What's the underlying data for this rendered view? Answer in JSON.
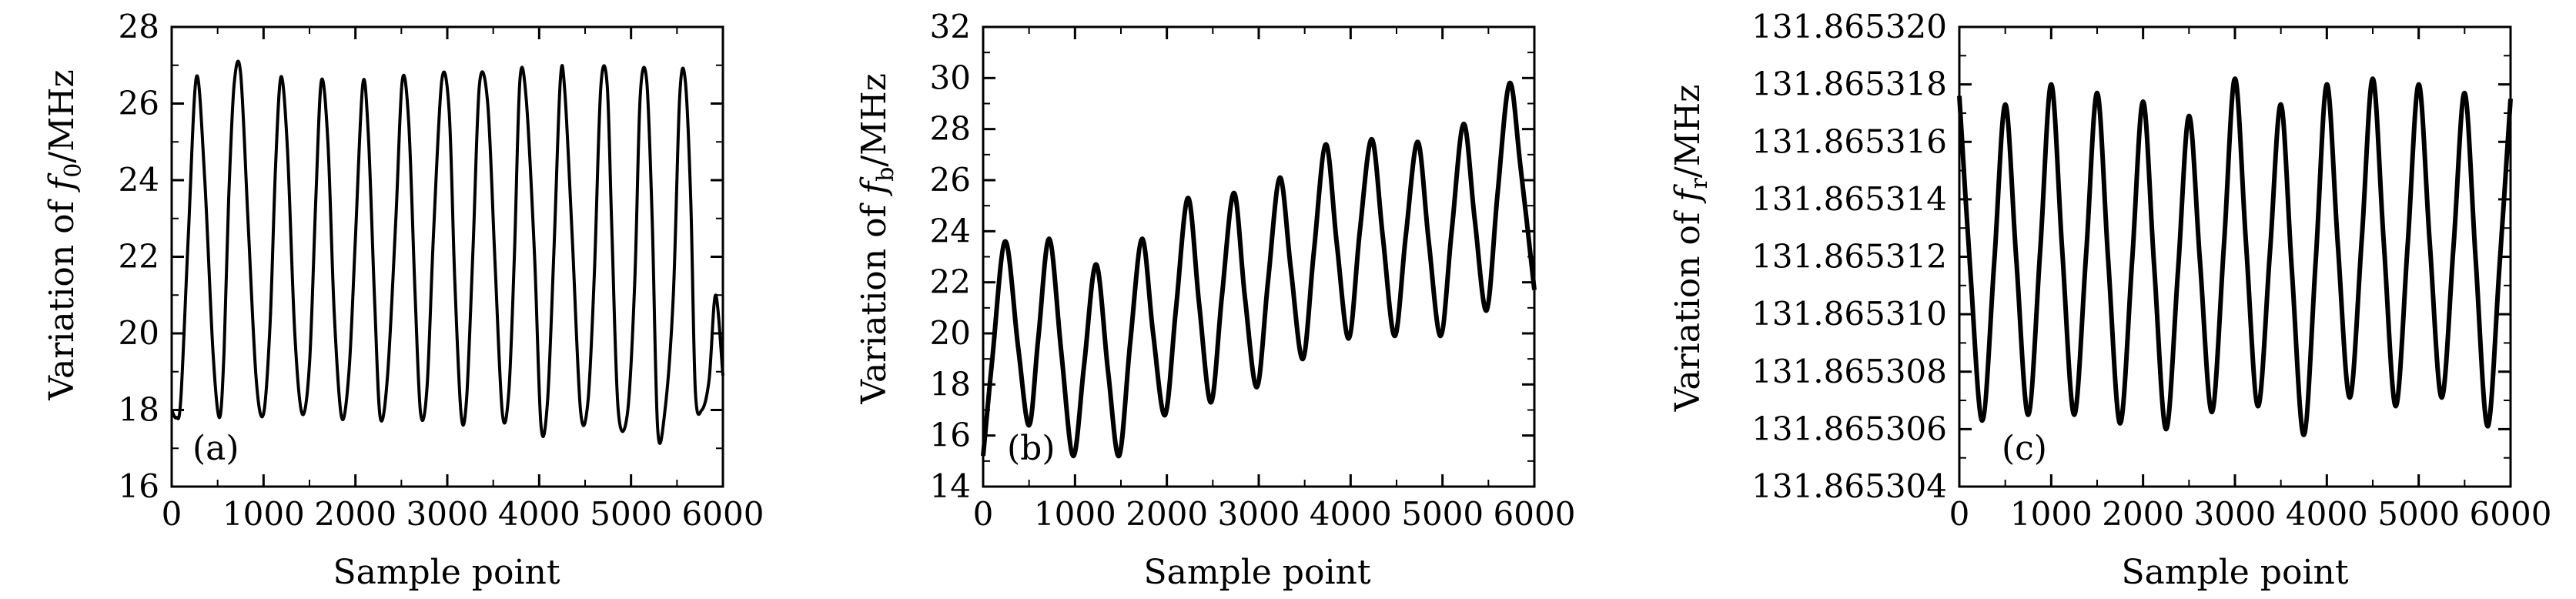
{
  "figure": {
    "panels": [
      "(a)",
      "(b)",
      "(c)"
    ]
  },
  "chart_data": [
    {
      "type": "line",
      "panel_label": "(a)",
      "xlabel": "Sample point",
      "ylabel": "Variation of f₀/MHz",
      "ylabel_parts": {
        "prefix": "Variation of ",
        "symbol": "f",
        "subscript": "0",
        "suffix": "/MHz"
      },
      "xlim": [
        0,
        6000
      ],
      "ylim": [
        16,
        28
      ],
      "xticks": [
        0,
        1000,
        2000,
        3000,
        4000,
        5000,
        6000
      ],
      "yticks": [
        16,
        18,
        20,
        22,
        24,
        26,
        28
      ],
      "ytick_labels": [
        "16",
        "18",
        "20",
        "22",
        "24",
        "26",
        "28"
      ],
      "line_color": "#000000",
      "series": [
        {
          "x": [
            0,
            50,
            100,
            180,
            270,
            360,
            450,
            520,
            570,
            620,
            680,
            750,
            830,
            920,
            1000,
            1070,
            1130,
            1190,
            1260,
            1340,
            1420,
            1500,
            1570,
            1630,
            1700,
            1770,
            1850,
            1930,
            2000,
            2080,
            2140,
            2210,
            2270,
            2350,
            2440,
            2510,
            2580,
            2650,
            2710,
            2780,
            2850,
            2940,
            3020,
            3080,
            3150,
            3210,
            3280,
            3350,
            3440,
            3520,
            3600,
            3670,
            3730,
            3790,
            3860,
            3950,
            4020,
            4090,
            4160,
            4230,
            4280,
            4360,
            4450,
            4530,
            4600,
            4670,
            4740,
            4790,
            4860,
            4960,
            5040,
            5100,
            5170,
            5230,
            5290,
            5370,
            5460,
            5530,
            5590,
            5650,
            5700,
            5770,
            5850,
            5920,
            6000
          ],
          "y": [
            18.0,
            17.8,
            18.3,
            22.5,
            26.7,
            24.0,
            19.5,
            17.8,
            19.5,
            23.5,
            26.5,
            26.8,
            23.0,
            18.8,
            17.9,
            20.2,
            24.3,
            26.7,
            24.8,
            20.0,
            17.9,
            19.2,
            23.6,
            26.6,
            25.0,
            20.5,
            17.8,
            19.0,
            22.5,
            26.5,
            25.2,
            20.8,
            17.8,
            18.9,
            23.0,
            26.6,
            25.5,
            21.0,
            17.9,
            18.6,
            22.6,
            26.6,
            25.8,
            21.5,
            17.9,
            18.3,
            22.2,
            26.5,
            26.0,
            21.8,
            17.9,
            18.5,
            22.0,
            26.6,
            26.1,
            22.0,
            17.6,
            18.2,
            22.1,
            26.6,
            26.3,
            22.5,
            18.0,
            18.2,
            21.5,
            26.4,
            26.5,
            22.8,
            18.0,
            17.9,
            21.3,
            26.2,
            26.6,
            23.0,
            17.5,
            18.0,
            21.0,
            26.2,
            26.6,
            23.5,
            18.5,
            18.0,
            18.8,
            21.0,
            18.9
          ]
        }
      ]
    },
    {
      "type": "line",
      "panel_label": "(b)",
      "xlabel": "Sample point",
      "ylabel": "Variation of f_b/MHz",
      "ylabel_parts": {
        "prefix": "Variation of ",
        "symbol": "f",
        "subscript": "b",
        "suffix": "/MHz"
      },
      "xlim": [
        0,
        6000
      ],
      "ylim": [
        14,
        32
      ],
      "xticks": [
        0,
        1000,
        2000,
        3000,
        4000,
        5000,
        6000
      ],
      "yticks": [
        14,
        16,
        18,
        20,
        22,
        24,
        26,
        28,
        30,
        32
      ],
      "ytick_labels": [
        "14",
        "16",
        "18",
        "20",
        "22",
        "24",
        "26",
        "28",
        "30",
        "32"
      ],
      "line_color": "#000000",
      "series": [
        {
          "x": [
            0,
            100,
            240,
            380,
            500,
            600,
            720,
            850,
            980,
            1100,
            1230,
            1360,
            1480,
            1600,
            1730,
            1850,
            1980,
            2100,
            2230,
            2350,
            2480,
            2600,
            2730,
            2850,
            2980,
            3100,
            3230,
            3350,
            3480,
            3600,
            3730,
            3850,
            3980,
            4100,
            4230,
            4350,
            4480,
            4600,
            4730,
            4850,
            4980,
            5100,
            5230,
            5350,
            5480,
            5600,
            5730,
            5850,
            6000
          ],
          "y": [
            15.2,
            19.0,
            23.6,
            19.5,
            16.4,
            19.8,
            23.7,
            19.3,
            15.2,
            18.8,
            22.7,
            18.5,
            15.2,
            19.6,
            23.7,
            20.0,
            16.8,
            21.0,
            25.3,
            21.2,
            17.3,
            21.5,
            25.5,
            21.4,
            17.9,
            22.0,
            26.1,
            22.5,
            19.0,
            23.2,
            27.4,
            23.5,
            19.8,
            24.0,
            27.6,
            23.8,
            19.9,
            23.8,
            27.5,
            23.6,
            19.9,
            24.0,
            28.2,
            24.5,
            20.9,
            25.5,
            29.8,
            26.5,
            21.7
          ]
        }
      ]
    },
    {
      "type": "line",
      "panel_label": "(c)",
      "xlabel": "Sample point",
      "ylabel": "Variation of f_r/MHz",
      "ylabel_parts": {
        "prefix": "Variation of ",
        "symbol": "f",
        "subscript": "r",
        "suffix": "/MHz"
      },
      "xlim": [
        0,
        6000
      ],
      "ylim": [
        131.865304,
        131.86532
      ],
      "xticks": [
        0,
        1000,
        2000,
        3000,
        4000,
        5000,
        6000
      ],
      "yticks": [
        131.865304,
        131.865306,
        131.865308,
        131.86531,
        131.865312,
        131.865314,
        131.865316,
        131.865318,
        131.86532
      ],
      "ytick_labels": [
        "131.865304",
        "131.865306",
        "131.865308",
        "131.865310",
        "131.865312",
        "131.865314",
        "131.865316",
        "131.865318",
        "131.865320"
      ],
      "line_color": "#000000",
      "series": [
        {
          "x": [
            0,
            120,
            250,
            380,
            500,
            620,
            750,
            880,
            1000,
            1120,
            1250,
            1380,
            1500,
            1620,
            1750,
            1880,
            2000,
            2120,
            2250,
            2380,
            2500,
            2620,
            2750,
            2880,
            3000,
            3120,
            3250,
            3380,
            3500,
            3620,
            3750,
            3880,
            4000,
            4120,
            4250,
            4380,
            4500,
            4620,
            4750,
            4880,
            5000,
            5120,
            5250,
            5380,
            5500,
            5620,
            5750,
            5880,
            6000
          ],
          "y": [
            131.8653176,
            131.8653115,
            131.8653063,
            131.8653118,
            131.8653173,
            131.8653119,
            131.8653065,
            131.8653122,
            131.865318,
            131.8653122,
            131.8653065,
            131.8653121,
            131.8653177,
            131.8653119,
            131.8653062,
            131.8653118,
            131.8653174,
            131.8653117,
            131.865306,
            131.8653115,
            131.8653169,
            131.8653118,
            131.8653066,
            131.8653124,
            131.8653182,
            131.8653125,
            131.8653068,
            131.8653121,
            131.8653173,
            131.8653115,
            131.8653058,
            131.8653119,
            131.865318,
            131.8653124,
            131.8653071,
            131.8653126,
            131.8653182,
            131.8653125,
            131.8653068,
            131.8653124,
            131.865318,
            131.8653125,
            131.8653071,
            131.8653124,
            131.8653177,
            131.8653119,
            131.8653061,
            131.8653117,
            131.8653175
          ]
        }
      ]
    }
  ]
}
